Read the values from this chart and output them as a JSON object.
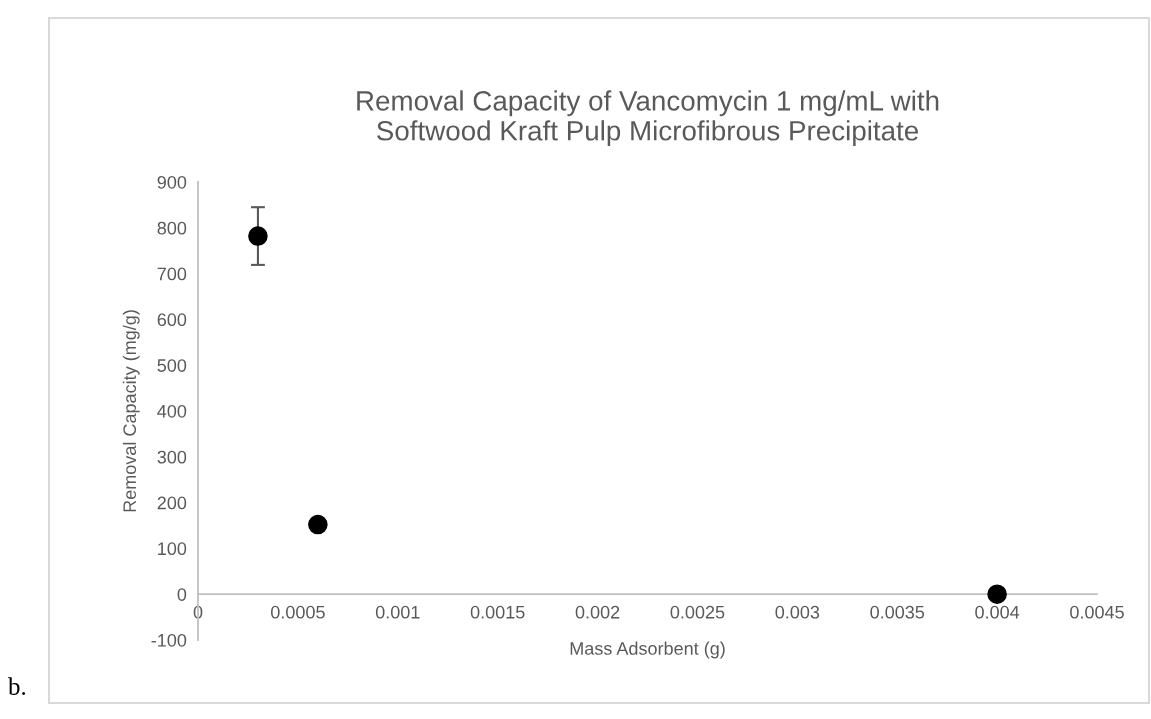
{
  "chart_data": {
    "type": "scatter",
    "title": "Removal Capacity of Vancomycin 1 mg/mL with\nSoftwood Kraft Pulp Microfibrous Precipitate",
    "xlabel": "Mass Adsorbent (g)",
    "ylabel": "Removal Capacity (mg/g)",
    "x": [
      0.0003,
      0.0006,
      0.004
    ],
    "values": [
      782,
      152,
      0
    ],
    "errors": [
      63,
      null,
      null
    ],
    "color": "#000000",
    "marker": "circle",
    "xlim": [
      0,
      0.0045
    ],
    "xticks": [
      0,
      0.0005,
      0.001,
      0.0015,
      0.002,
      0.0025,
      0.003,
      0.0035,
      0.004,
      0.0045
    ],
    "ylim": [
      -100,
      900
    ],
    "yticks": [
      -100,
      0,
      100,
      200,
      300,
      400,
      500,
      600,
      700,
      800,
      900
    ],
    "grid": false,
    "legend": false,
    "annotations": [
      "b."
    ]
  }
}
